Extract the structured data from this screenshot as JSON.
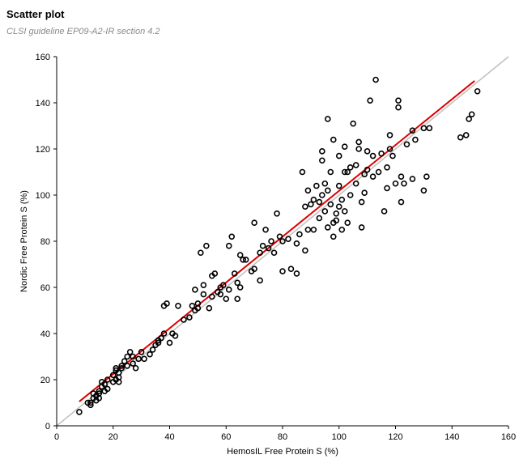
{
  "header": {
    "title": "Scatter plot",
    "subtitle": "CLSI guideline EP09-A2-IR section 4.2"
  },
  "colors": {
    "points": "#000000",
    "regression_line": "#e00000",
    "identity_line": "#c0c0c0",
    "axes": "#000000"
  },
  "chart_data": {
    "type": "scatter",
    "xlabel": "HemosIL Free Protein S (%)",
    "ylabel": "Nordic Free Protein S (%)",
    "xlim": [
      0,
      160
    ],
    "ylim": [
      0,
      160
    ],
    "x_ticks": [
      0,
      20,
      40,
      60,
      80,
      100,
      120,
      140,
      160
    ],
    "y_ticks": [
      0,
      20,
      40,
      60,
      80,
      100,
      120,
      140,
      160
    ],
    "grid": false,
    "legend": "none",
    "reference_lines": [
      {
        "kind": "identity",
        "x": [
          0,
          160
        ],
        "y": [
          0,
          160
        ],
        "color": "gray"
      },
      {
        "kind": "regression",
        "x": [
          8,
          148
        ],
        "y": [
          10.5,
          149.5
        ],
        "color": "red"
      }
    ],
    "points": [
      [
        8,
        6
      ],
      [
        11,
        10
      ],
      [
        12,
        9
      ],
      [
        12,
        10
      ],
      [
        13,
        12
      ],
      [
        13,
        14
      ],
      [
        14,
        11
      ],
      [
        14,
        13
      ],
      [
        15,
        12
      ],
      [
        15,
        14
      ],
      [
        15,
        15
      ],
      [
        16,
        17
      ],
      [
        16,
        19
      ],
      [
        17,
        15
      ],
      [
        17,
        18
      ],
      [
        18,
        16
      ],
      [
        18,
        20
      ],
      [
        20,
        19
      ],
      [
        20,
        22
      ],
      [
        21,
        20
      ],
      [
        21,
        24
      ],
      [
        21,
        25
      ],
      [
        22,
        19
      ],
      [
        22,
        21
      ],
      [
        22,
        23
      ],
      [
        23,
        25
      ],
      [
        23,
        26
      ],
      [
        24,
        28
      ],
      [
        25,
        26
      ],
      [
        25,
        30
      ],
      [
        26,
        32
      ],
      [
        27,
        27
      ],
      [
        27,
        30
      ],
      [
        28,
        25
      ],
      [
        29,
        29
      ],
      [
        30,
        32
      ],
      [
        31,
        29
      ],
      [
        33,
        31
      ],
      [
        34,
        33
      ],
      [
        35,
        35
      ],
      [
        36,
        36
      ],
      [
        36,
        37
      ],
      [
        37,
        38
      ],
      [
        38,
        40
      ],
      [
        38,
        52
      ],
      [
        39,
        53
      ],
      [
        40,
        36
      ],
      [
        41,
        40
      ],
      [
        42,
        39
      ],
      [
        43,
        52
      ],
      [
        45,
        46
      ],
      [
        47,
        47
      ],
      [
        48,
        52
      ],
      [
        49,
        50
      ],
      [
        49,
        59
      ],
      [
        50,
        53
      ],
      [
        50,
        51
      ],
      [
        51,
        75
      ],
      [
        52,
        57
      ],
      [
        52,
        61
      ],
      [
        53,
        78
      ],
      [
        54,
        51
      ],
      [
        55,
        56
      ],
      [
        55,
        65
      ],
      [
        56,
        66
      ],
      [
        57,
        58
      ],
      [
        58,
        57
      ],
      [
        58,
        60
      ],
      [
        59,
        61
      ],
      [
        60,
        55
      ],
      [
        61,
        59
      ],
      [
        61,
        78
      ],
      [
        62,
        82
      ],
      [
        63,
        66
      ],
      [
        64,
        55
      ],
      [
        64,
        62
      ],
      [
        65,
        60
      ],
      [
        65,
        74
      ],
      [
        66,
        72
      ],
      [
        67,
        72
      ],
      [
        69,
        67
      ],
      [
        70,
        68
      ],
      [
        70,
        88
      ],
      [
        72,
        63
      ],
      [
        72,
        75
      ],
      [
        73,
        78
      ],
      [
        74,
        85
      ],
      [
        75,
        77
      ],
      [
        76,
        80
      ],
      [
        77,
        75
      ],
      [
        78,
        92
      ],
      [
        79,
        82
      ],
      [
        80,
        80
      ],
      [
        80,
        67
      ],
      [
        82,
        81
      ],
      [
        83,
        68
      ],
      [
        85,
        79
      ],
      [
        85,
        66
      ],
      [
        86,
        83
      ],
      [
        87,
        110
      ],
      [
        88,
        76
      ],
      [
        88,
        95
      ],
      [
        89,
        85
      ],
      [
        89,
        102
      ],
      [
        90,
        96
      ],
      [
        91,
        85
      ],
      [
        91,
        98
      ],
      [
        92,
        104
      ],
      [
        93,
        90
      ],
      [
        93,
        97
      ],
      [
        94,
        115
      ],
      [
        94,
        119
      ],
      [
        94,
        100
      ],
      [
        95,
        93
      ],
      [
        95,
        105
      ],
      [
        96,
        86
      ],
      [
        96,
        102
      ],
      [
        96,
        133
      ],
      [
        97,
        96
      ],
      [
        97,
        110
      ],
      [
        98,
        82
      ],
      [
        98,
        88
      ],
      [
        98,
        124
      ],
      [
        99,
        89
      ],
      [
        99,
        92
      ],
      [
        100,
        95
      ],
      [
        100,
        104
      ],
      [
        100,
        117
      ],
      [
        101,
        85
      ],
      [
        101,
        98
      ],
      [
        102,
        93
      ],
      [
        102,
        110
      ],
      [
        102,
        121
      ],
      [
        103,
        88
      ],
      [
        103,
        110
      ],
      [
        104,
        100
      ],
      [
        104,
        112
      ],
      [
        105,
        131
      ],
      [
        106,
        105
      ],
      [
        106,
        113
      ],
      [
        107,
        120
      ],
      [
        107,
        123
      ],
      [
        108,
        86
      ],
      [
        108,
        97
      ],
      [
        109,
        101
      ],
      [
        109,
        109
      ],
      [
        110,
        111
      ],
      [
        110,
        119
      ],
      [
        111,
        141
      ],
      [
        112,
        108
      ],
      [
        112,
        117
      ],
      [
        113,
        150
      ],
      [
        114,
        110
      ],
      [
        115,
        118
      ],
      [
        116,
        93
      ],
      [
        117,
        103
      ],
      [
        117,
        112
      ],
      [
        118,
        120
      ],
      [
        118,
        126
      ],
      [
        119,
        117
      ],
      [
        120,
        105
      ],
      [
        121,
        138
      ],
      [
        121,
        141
      ],
      [
        122,
        97
      ],
      [
        122,
        108
      ],
      [
        123,
        105
      ],
      [
        124,
        122
      ],
      [
        126,
        107
      ],
      [
        126,
        128
      ],
      [
        127,
        124
      ],
      [
        130,
        102
      ],
      [
        130,
        129
      ],
      [
        131,
        108
      ],
      [
        132,
        129
      ],
      [
        143,
        125
      ],
      [
        145,
        126
      ],
      [
        146,
        133
      ],
      [
        147,
        135
      ],
      [
        149,
        145
      ]
    ]
  }
}
